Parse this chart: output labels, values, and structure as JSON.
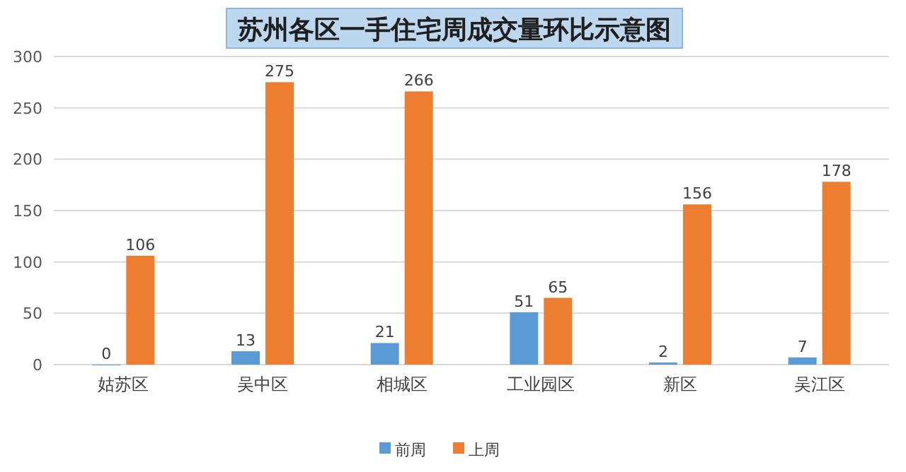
{
  "chart_data": {
    "type": "bar",
    "title": "苏州各区一手住宅周成交量环比示意图",
    "categories": [
      "姑苏区",
      "吴中区",
      "相城区",
      "工业园区",
      "新区",
      "吴江区"
    ],
    "series": [
      {
        "name": "前周",
        "color": "#5b9bd5",
        "values": [
          0,
          13,
          21,
          51,
          2,
          7
        ]
      },
      {
        "name": "上周",
        "color": "#ed7d31",
        "values": [
          106,
          275,
          266,
          65,
          156,
          178
        ]
      }
    ],
    "ylim": [
      0,
      300
    ],
    "yticks": [
      0,
      50,
      100,
      150,
      200,
      250,
      300
    ],
    "grid": "y",
    "legend": "bottom",
    "data_labels": true
  }
}
